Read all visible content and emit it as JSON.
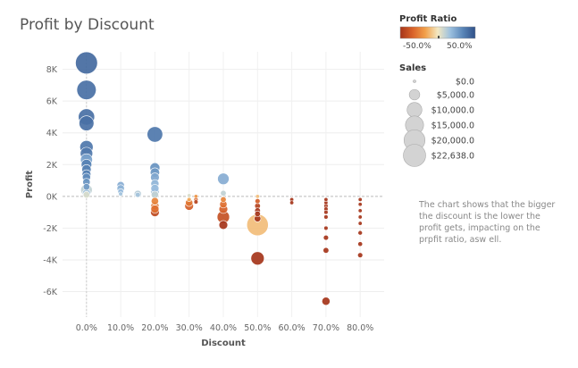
{
  "chart_data": {
    "type": "scatter",
    "title": "Profit by Discount",
    "xlabel": "Discount",
    "ylabel": "Profit",
    "x_ticks": [
      "0.0%",
      "10.0%",
      "20.0%",
      "30.0%",
      "40.0%",
      "50.0%",
      "60.0%",
      "70.0%",
      "80.0%"
    ],
    "y_ticks": [
      "8K",
      "6K",
      "4K",
      "2K",
      "0K",
      "-2K",
      "-4K",
      "-6K"
    ],
    "xlim": [
      -0.07,
      0.87
    ],
    "ylim": [
      -7600,
      9100
    ],
    "grid": true,
    "color_legend": {
      "title": "Profit Ratio",
      "min_label": "-50.0%",
      "max_label": "50.0%",
      "colors": [
        "#a5351a",
        "#d9632a",
        "#f2a04a",
        "#f3e8c2",
        "#9cc0df",
        "#5a86b8",
        "#2f5088"
      ]
    },
    "size_legend": {
      "title": "Sales",
      "labels": [
        "$0.0",
        "$5,000.0",
        "$10,000.0",
        "$15,000.0",
        "$20,000.0",
        "$22,638.0"
      ],
      "values": [
        0,
        5000,
        10000,
        15000,
        20000,
        22638
      ]
    },
    "points": [
      {
        "discount": 0.0,
        "profit": 8400,
        "sales": 22000,
        "ratio": 0.42
      },
      {
        "discount": 0.0,
        "profit": 6700,
        "sales": 17000,
        "ratio": 0.4
      },
      {
        "discount": 0.0,
        "profit": 5000,
        "sales": 12000,
        "ratio": 0.4
      },
      {
        "discount": 0.0,
        "profit": 4600,
        "sales": 10000,
        "ratio": 0.4
      },
      {
        "discount": 0.0,
        "profit": 3100,
        "sales": 8000,
        "ratio": 0.38
      },
      {
        "discount": 0.0,
        "profit": 2700,
        "sales": 7000,
        "ratio": 0.37
      },
      {
        "discount": 0.0,
        "profit": 2300,
        "sales": 6500,
        "ratio": 0.25
      },
      {
        "discount": 0.0,
        "profit": 2000,
        "sales": 5000,
        "ratio": 0.35
      },
      {
        "discount": 0.0,
        "profit": 1700,
        "sales": 4000,
        "ratio": 0.35
      },
      {
        "discount": 0.0,
        "profit": 1400,
        "sales": 3500,
        "ratio": 0.35
      },
      {
        "discount": 0.0,
        "profit": 1200,
        "sales": 3000,
        "ratio": 0.32
      },
      {
        "discount": 0.0,
        "profit": 900,
        "sales": 2500,
        "ratio": 0.3
      },
      {
        "discount": 0.0,
        "profit": 600,
        "sales": 2000,
        "ratio": 0.28
      },
      {
        "discount": 0.0,
        "profit": 400,
        "sales": 6000,
        "ratio": 0.1
      },
      {
        "discount": 0.0,
        "profit": 200,
        "sales": 3000,
        "ratio": 0.15
      },
      {
        "discount": 0.0,
        "profit": 100,
        "sales": 2000,
        "ratio": 0.05
      },
      {
        "discount": 0.1,
        "profit": 700,
        "sales": 2500,
        "ratio": 0.22
      },
      {
        "discount": 0.1,
        "profit": 500,
        "sales": 2500,
        "ratio": 0.2
      },
      {
        "discount": 0.1,
        "profit": 300,
        "sales": 1500,
        "ratio": 0.18
      },
      {
        "discount": 0.1,
        "profit": 150,
        "sales": 800,
        "ratio": 0.15
      },
      {
        "discount": 0.15,
        "profit": 150,
        "sales": 2500,
        "ratio": 0.12
      },
      {
        "discount": 0.15,
        "profit": 100,
        "sales": 1200,
        "ratio": 0.15
      },
      {
        "discount": 0.2,
        "profit": 3900,
        "sales": 11000,
        "ratio": 0.38
      },
      {
        "discount": 0.2,
        "profit": 1800,
        "sales": 4500,
        "ratio": 0.3
      },
      {
        "discount": 0.2,
        "profit": 1500,
        "sales": 4000,
        "ratio": 0.28
      },
      {
        "discount": 0.2,
        "profit": 1200,
        "sales": 3500,
        "ratio": 0.24
      },
      {
        "discount": 0.2,
        "profit": 800,
        "sales": 3000,
        "ratio": 0.2
      },
      {
        "discount": 0.2,
        "profit": 500,
        "sales": 3000,
        "ratio": 0.18
      },
      {
        "discount": 0.2,
        "profit": 300,
        "sales": 3500,
        "ratio": 0.14
      },
      {
        "discount": 0.2,
        "profit": 100,
        "sales": 2500,
        "ratio": 0.1
      },
      {
        "discount": 0.2,
        "profit": -300,
        "sales": 2500,
        "ratio": -0.25
      },
      {
        "discount": 0.2,
        "profit": -600,
        "sales": 3000,
        "ratio": -0.28
      },
      {
        "discount": 0.2,
        "profit": -800,
        "sales": 3000,
        "ratio": -0.3
      },
      {
        "discount": 0.2,
        "profit": -1000,
        "sales": 3500,
        "ratio": -0.42
      },
      {
        "discount": 0.3,
        "profit": 50,
        "sales": 600,
        "ratio": 0.05
      },
      {
        "discount": 0.3,
        "profit": -200,
        "sales": 800,
        "ratio": -0.15
      },
      {
        "discount": 0.3,
        "profit": -400,
        "sales": 2500,
        "ratio": -0.28
      },
      {
        "discount": 0.3,
        "profit": -600,
        "sales": 3500,
        "ratio": -0.35
      },
      {
        "discount": 0.32,
        "profit": 0,
        "sales": 500,
        "ratio": -0.2
      },
      {
        "discount": 0.32,
        "profit": -200,
        "sales": 800,
        "ratio": -0.35
      },
      {
        "discount": 0.32,
        "profit": -350,
        "sales": 800,
        "ratio": -0.45
      },
      {
        "discount": 0.4,
        "profit": 1100,
        "sales": 6000,
        "ratio": 0.22
      },
      {
        "discount": 0.4,
        "profit": 200,
        "sales": 1500,
        "ratio": 0.1
      },
      {
        "discount": 0.4,
        "profit": -200,
        "sales": 1500,
        "ratio": -0.25
      },
      {
        "discount": 0.4,
        "profit": -500,
        "sales": 2500,
        "ratio": -0.3
      },
      {
        "discount": 0.4,
        "profit": -800,
        "sales": 3500,
        "ratio": -0.35
      },
      {
        "discount": 0.4,
        "profit": -1300,
        "sales": 7000,
        "ratio": -0.4
      },
      {
        "discount": 0.4,
        "profit": -1800,
        "sales": 3500,
        "ratio": -0.5
      },
      {
        "discount": 0.5,
        "profit": 0,
        "sales": 600,
        "ratio": -0.1
      },
      {
        "discount": 0.5,
        "profit": -300,
        "sales": 1200,
        "ratio": -0.35
      },
      {
        "discount": 0.5,
        "profit": -600,
        "sales": 1500,
        "ratio": -0.45
      },
      {
        "discount": 0.5,
        "profit": -900,
        "sales": 1500,
        "ratio": -0.5
      },
      {
        "discount": 0.5,
        "profit": -1100,
        "sales": 1500,
        "ratio": -0.5
      },
      {
        "discount": 0.5,
        "profit": -1400,
        "sales": 2000,
        "ratio": -0.5
      },
      {
        "discount": 0.5,
        "profit": -1800,
        "sales": 21000,
        "ratio": -0.1
      },
      {
        "discount": 0.5,
        "profit": -3900,
        "sales": 8000,
        "ratio": -0.5
      },
      {
        "discount": 0.6,
        "profit": -200,
        "sales": 500,
        "ratio": -0.5
      },
      {
        "discount": 0.6,
        "profit": -400,
        "sales": 500,
        "ratio": -0.5
      },
      {
        "discount": 0.7,
        "profit": -200,
        "sales": 400,
        "ratio": -0.6
      },
      {
        "discount": 0.7,
        "profit": -400,
        "sales": 600,
        "ratio": -0.6
      },
      {
        "discount": 0.7,
        "profit": -600,
        "sales": 800,
        "ratio": -0.6
      },
      {
        "discount": 0.7,
        "profit": -800,
        "sales": 800,
        "ratio": -0.6
      },
      {
        "discount": 0.7,
        "profit": -1000,
        "sales": 800,
        "ratio": -0.6
      },
      {
        "discount": 0.7,
        "profit": -1300,
        "sales": 800,
        "ratio": -0.6
      },
      {
        "discount": 0.7,
        "profit": -2000,
        "sales": 800,
        "ratio": -0.6
      },
      {
        "discount": 0.7,
        "profit": -2600,
        "sales": 1200,
        "ratio": -0.6
      },
      {
        "discount": 0.7,
        "profit": -3400,
        "sales": 1500,
        "ratio": -0.6
      },
      {
        "discount": 0.7,
        "profit": -6600,
        "sales": 3000,
        "ratio": -0.6
      },
      {
        "discount": 0.8,
        "profit": -200,
        "sales": 300,
        "ratio": -0.8
      },
      {
        "discount": 0.8,
        "profit": -500,
        "sales": 400,
        "ratio": -0.8
      },
      {
        "discount": 0.8,
        "profit": -900,
        "sales": 500,
        "ratio": -0.8
      },
      {
        "discount": 0.8,
        "profit": -1300,
        "sales": 600,
        "ratio": -0.8
      },
      {
        "discount": 0.8,
        "profit": -1700,
        "sales": 700,
        "ratio": -0.8
      },
      {
        "discount": 0.8,
        "profit": -2300,
        "sales": 900,
        "ratio": -0.8
      },
      {
        "discount": 0.8,
        "profit": -3000,
        "sales": 1000,
        "ratio": -0.8
      },
      {
        "discount": 0.8,
        "profit": -3700,
        "sales": 1200,
        "ratio": -0.8
      }
    ]
  },
  "note": "The chart shows that the bigger the discount is the lower the profit gets, impacting on the prpfit ratio, asw ell."
}
